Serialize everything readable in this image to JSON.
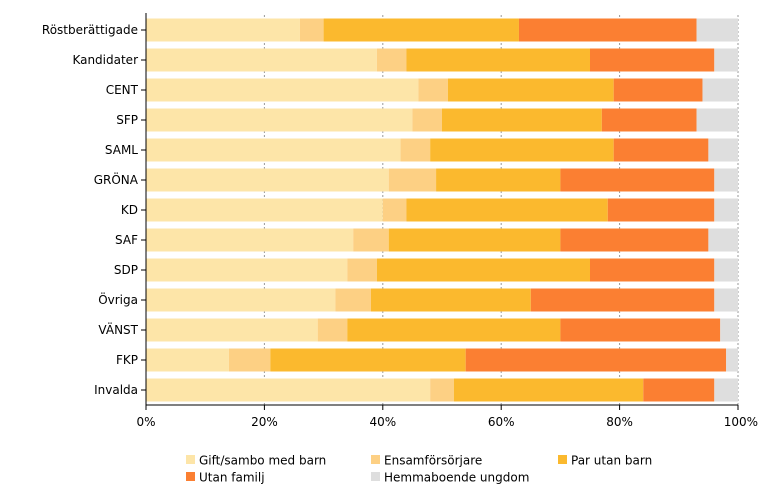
{
  "chart_data": {
    "type": "bar",
    "orientation": "horizontal",
    "stacked": true,
    "categories": [
      "Röstberättigade",
      "Kandidater",
      "CENT",
      "SFP",
      "SAML",
      "GRÖNA",
      "KD",
      "SAF",
      "SDP",
      "Övriga",
      "VÄNST",
      "FKP",
      "Invalda"
    ],
    "series": [
      {
        "name": "Gift/sambo med barn",
        "color": "#fde5a8",
        "values": [
          26,
          39,
          46,
          45,
          43,
          41,
          40,
          35,
          34,
          32,
          29,
          14,
          48
        ]
      },
      {
        "name": "Ensamförsörjare",
        "color": "#fdd084",
        "values": [
          4,
          5,
          5,
          5,
          5,
          8,
          4,
          6,
          5,
          6,
          5,
          7,
          4
        ]
      },
      {
        "name": "Par utan barn",
        "color": "#fbb92e",
        "values": [
          33,
          31,
          28,
          27,
          31,
          21,
          34,
          29,
          36,
          27,
          36,
          33,
          32
        ]
      },
      {
        "name": "Utan familj",
        "color": "#fb7f32",
        "values": [
          30,
          21,
          15,
          16,
          16,
          26,
          18,
          25,
          21,
          31,
          27,
          44,
          12
        ]
      },
      {
        "name": "Hemmaboende ungdom",
        "color": "#dedede",
        "values": [
          7,
          4,
          6,
          7,
          5,
          4,
          4,
          5,
          4,
          4,
          3,
          2,
          4
        ]
      }
    ],
    "x_ticks": [
      "0%",
      "20%",
      "40%",
      "60%",
      "80%",
      "100%"
    ],
    "xlim": [
      0,
      100
    ],
    "grid": true,
    "legend_position": "bottom"
  }
}
